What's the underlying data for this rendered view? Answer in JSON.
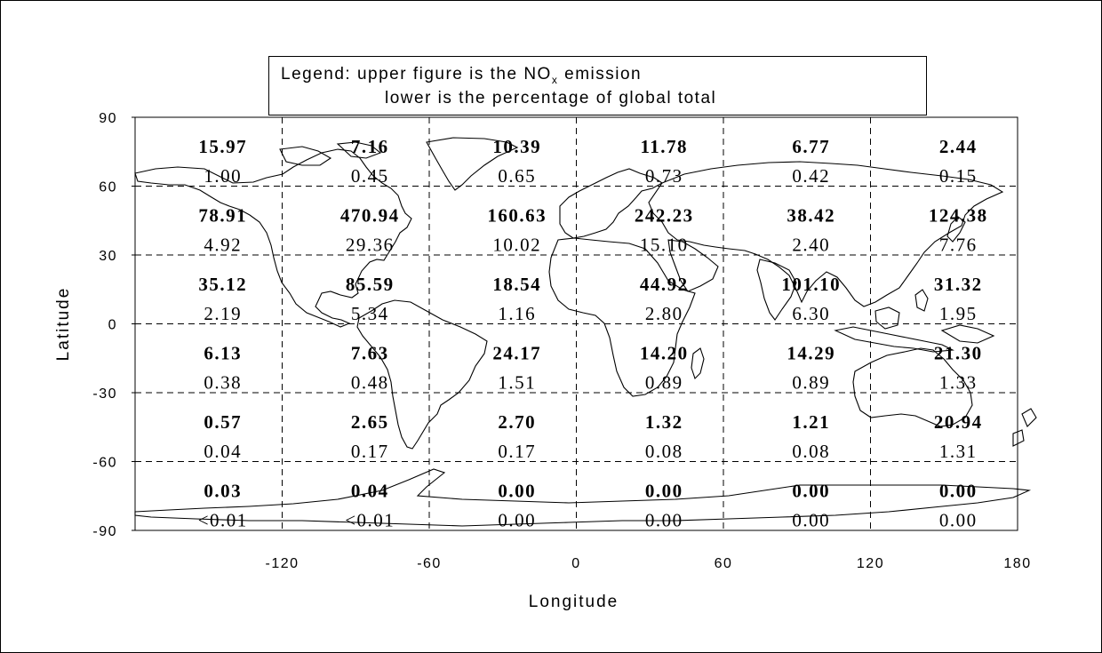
{
  "legend": {
    "line1_prefix": "Legend: upper figure is the NO",
    "line1_sub": "x",
    "line1_suffix": " emission",
    "line2": "lower is the percentage of global total"
  },
  "chart_data": {
    "type": "table",
    "xlabel": "Longitude",
    "ylabel": "Latitude",
    "xlim": [
      -180,
      180
    ],
    "ylim": [
      -90,
      90
    ],
    "x_ticks": [
      "-120",
      "-60",
      "0",
      "60",
      "120",
      "180"
    ],
    "y_ticks": [
      "90",
      "60",
      "30",
      "0",
      "-30",
      "-60",
      "-90"
    ],
    "grid": true,
    "lon_bins": [
      "-180 to -120",
      "-120 to -60",
      "-60 to 0",
      "0 to 60",
      "60 to 120",
      "120 to 180"
    ],
    "lat_bins": [
      "60 to 90",
      "30 to 60",
      "0 to 30",
      "-30 to 0",
      "-60 to -30",
      "-90 to -60"
    ],
    "emissions": [
      [
        "15.97",
        "7.16",
        "10.39",
        "11.78",
        "6.77",
        "2.44"
      ],
      [
        "78.91",
        "470.94",
        "160.63",
        "242.23",
        "38.42",
        "124.38"
      ],
      [
        "35.12",
        "85.59",
        "18.54",
        "44.92",
        "101.10",
        "31.32"
      ],
      [
        "6.13",
        "7.63",
        "24.17",
        "14.20",
        "14.29",
        "21.30"
      ],
      [
        "0.57",
        "2.65",
        "2.70",
        "1.32",
        "1.21",
        "20.94"
      ],
      [
        "0.03",
        "0.04",
        "0.00",
        "0.00",
        "0.00",
        "0.00"
      ]
    ],
    "percentages": [
      [
        "1.00",
        "0.45",
        "0.65",
        "0.73",
        "0.42",
        "0.15"
      ],
      [
        "4.92",
        "29.36",
        "10.02",
        "15.10",
        "2.40",
        "7.76"
      ],
      [
        "2.19",
        "5.34",
        "1.16",
        "2.80",
        "6.30",
        "1.95"
      ],
      [
        "0.38",
        "0.48",
        "1.51",
        "0.89",
        "0.89",
        "1.33"
      ],
      [
        "0.04",
        "0.17",
        "0.17",
        "0.08",
        "0.08",
        "1.31"
      ],
      [
        "<0.01",
        "<0.01",
        "0.00",
        "0.00",
        "0.00",
        "0.00"
      ]
    ]
  }
}
